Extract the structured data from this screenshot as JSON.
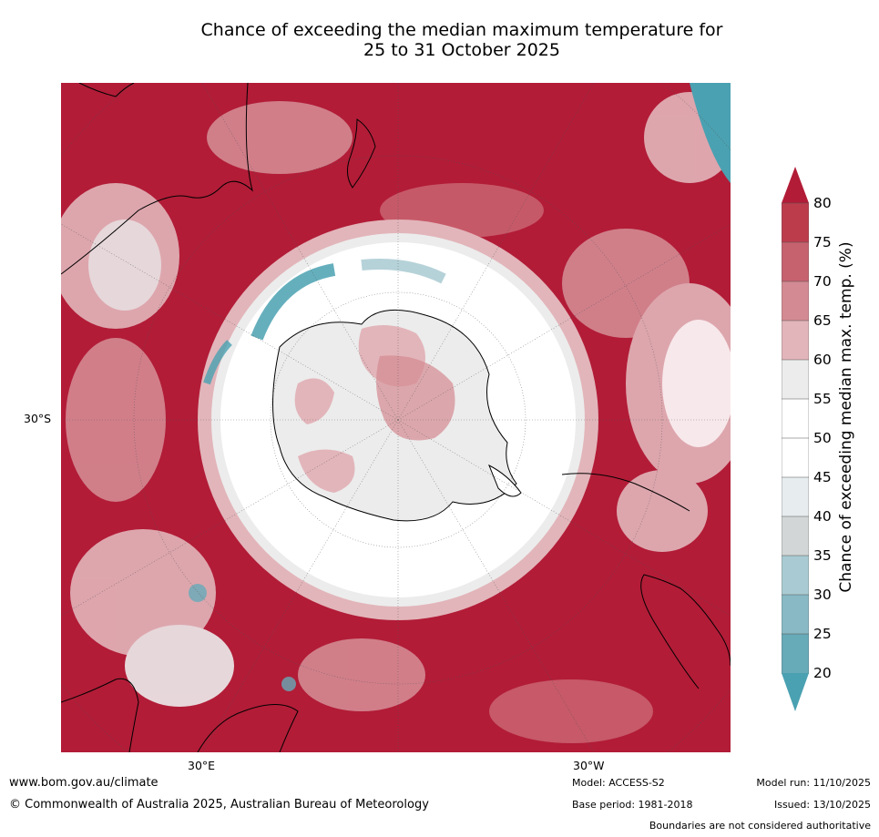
{
  "title_line1": "Chance of exceeding the median maximum temperature for",
  "title_line2": "25 to 31 October 2025",
  "map": {
    "lat_label": "30°S",
    "lon_label_left": "30°E",
    "lon_label_right": "30°W",
    "projection": "south polar stereographic",
    "colors": {
      "high": "#b21c37",
      "mid_high": "#c9606e",
      "light_red": "#e4b3ba",
      "neutral": "#ececec",
      "white": "#ffffff",
      "light_blue": "#c9dde2",
      "teal": "#4aa1b1",
      "coast": "#000000"
    }
  },
  "colorbar": {
    "title": "Chance of exceeding median max. temp. (%)",
    "ticks": [
      "80",
      "75",
      "70",
      "65",
      "60",
      "55",
      "50",
      "45",
      "40",
      "35",
      "30",
      "25",
      "20"
    ],
    "colors": [
      "#b21c37",
      "#bd3c4c",
      "#c6626e",
      "#d48a92",
      "#e2b5ba",
      "#ececec",
      "#ffffff",
      "#ffffff",
      "#e7ecee",
      "#d3d6d7",
      "#a9cad2",
      "#88b9c4",
      "#67aab8",
      "#4aa1b1"
    ]
  },
  "footer": {
    "url": "www.bom.gov.au/climate",
    "copyright": "© Commonwealth of Australia 2025, Australian Bureau of Meteorology",
    "model": "Model: ACCESS-S2",
    "base_period": "Base period: 1981-2018",
    "model_run": "Model run: 11/10/2025",
    "issued": "Issued: 13/10/2025",
    "boundaries": "Boundaries are not considered authoritative"
  }
}
